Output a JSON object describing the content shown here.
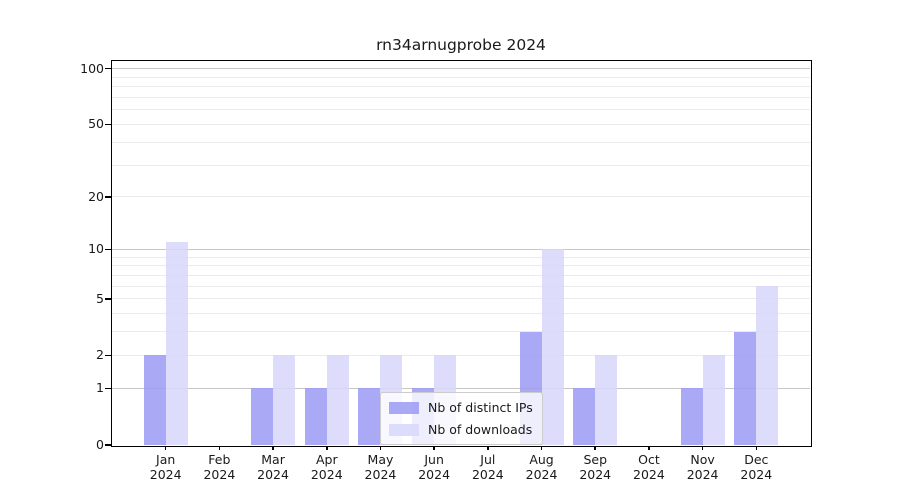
{
  "chart_data": {
    "type": "bar",
    "title": "rn34arnugprobe 2024",
    "categories": [
      "Jan 2024",
      "Feb 2024",
      "Mar 2024",
      "Apr 2024",
      "May 2024",
      "Jun 2024",
      "Jul 2024",
      "Aug 2024",
      "Sep 2024",
      "Oct 2024",
      "Nov 2024",
      "Dec 2024"
    ],
    "series": [
      {
        "name": "Nb of distinct IPs",
        "color": "#9a9af3",
        "values": [
          2,
          0,
          1,
          1,
          1,
          1,
          0,
          3,
          1,
          0,
          1,
          3
        ]
      },
      {
        "name": "Nb of downloads",
        "color": "#d7d7fa",
        "values": [
          11,
          0,
          2,
          2,
          2,
          2,
          0,
          10,
          2,
          0,
          2,
          6
        ]
      }
    ],
    "xlabel": "",
    "ylabel": "",
    "yscale": "log1p",
    "ylim": [
      0,
      110
    ],
    "yticks_labeled": [
      0,
      1,
      2,
      5,
      10,
      20,
      50,
      100
    ],
    "grid_major": [
      1,
      10,
      100
    ],
    "grid_minor": [
      2,
      3,
      4,
      5,
      6,
      7,
      8,
      9,
      20,
      30,
      40,
      50,
      60,
      70,
      80,
      90
    ],
    "grid": "horizontal",
    "legend_position": "lower center",
    "colors": {
      "grid_major": "#c7c7c7",
      "grid_minor": "#ebebeb",
      "axis": "#000000",
      "background": "#ffffff"
    }
  }
}
